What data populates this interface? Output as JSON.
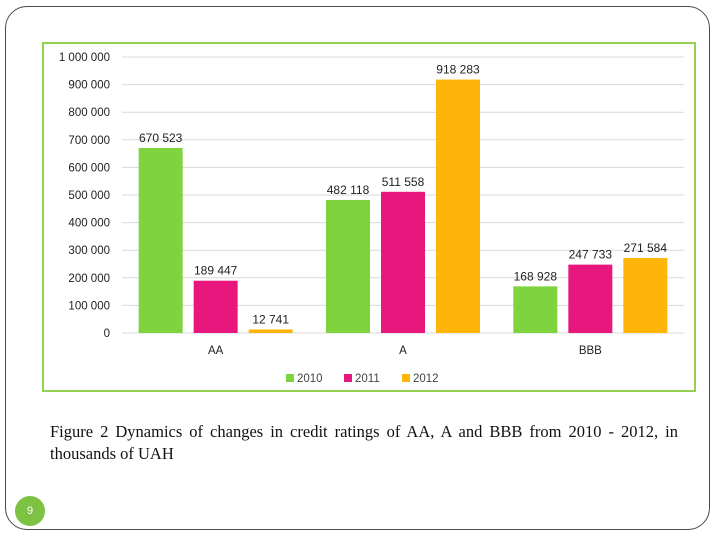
{
  "caption": "Figure 2 Dynamics of changes in credit ratings of AA, A and BBB from 2010 - 2012, in thousands of UAH",
  "page_number": "9",
  "chart_data": {
    "type": "bar",
    "categories": [
      "AA",
      "A",
      "BBB"
    ],
    "series": [
      {
        "name": "2010",
        "color": "#7ed33e",
        "values": [
          670523,
          482118,
          168928
        ],
        "labels": [
          "670 523",
          "482 118",
          "168 928"
        ]
      },
      {
        "name": "2011",
        "color": "#e8177d",
        "values": [
          189447,
          511558,
          247733
        ],
        "labels": [
          "189 447",
          "511 558",
          "247 733"
        ]
      },
      {
        "name": "2012",
        "color": "#ffb40a",
        "values": [
          12741,
          918283,
          271584
        ],
        "labels": [
          "12 741",
          "918 283",
          "271 584"
        ]
      }
    ],
    "ylim": [
      0,
      1000000
    ],
    "yticks": [
      0,
      100000,
      200000,
      300000,
      400000,
      500000,
      600000,
      700000,
      800000,
      900000,
      1000000
    ],
    "ytick_labels": [
      "0",
      "100 000",
      "200 000",
      "300 000",
      "400 000",
      "500 000",
      "600 000",
      "700 000",
      "800 000",
      "900 000",
      "1 000 000"
    ],
    "grid": true,
    "legend_position": "bottom",
    "title": "",
    "xlabel": "",
    "ylabel": ""
  }
}
